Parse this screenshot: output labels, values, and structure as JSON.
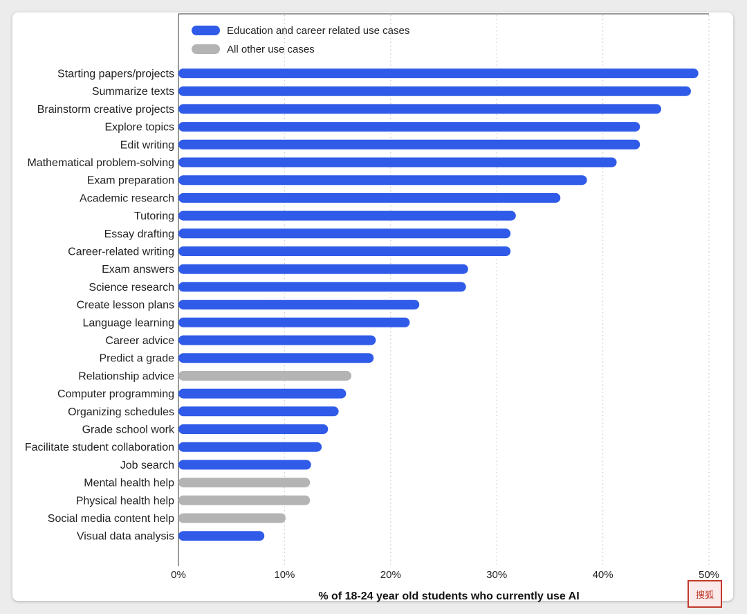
{
  "chart_data": {
    "type": "bar",
    "orientation": "horizontal",
    "title": "",
    "xlabel": "% of 18-24 year old students who currently use AI",
    "ylabel": "",
    "xlim": [
      0,
      50
    ],
    "x_ticks": [
      "0%",
      "10%",
      "20%",
      "30%",
      "40%",
      "50%"
    ],
    "x_tick_values": [
      0,
      10,
      20,
      30,
      40,
      50
    ],
    "grid": "vertical dotted",
    "legend_position": "top-left",
    "legend": [
      {
        "label": "Education and career related use cases",
        "color": "#2f5be8"
      },
      {
        "label": "All other use cases",
        "color": "#b4b4b4"
      }
    ],
    "categories": [
      "Starting papers/projects",
      "Summarize texts",
      "Brainstorm creative projects",
      "Explore topics",
      "Edit writing",
      "Mathematical problem-solving",
      "Exam preparation",
      "Academic research",
      "Tutoring",
      "Essay drafting",
      "Career-related writing",
      "Exam answers",
      "Science research",
      "Create lesson plans",
      "Language learning",
      "Career advice",
      "Predict a grade",
      "Relationship advice",
      "Computer programming",
      "Organizing schedules",
      "Grade school work",
      "Facilitate student collaboration",
      "Job search",
      "Mental health help",
      "Physical health help",
      "Social media content help",
      "Visual data analysis"
    ],
    "values": [
      49,
      48.3,
      45.5,
      43.5,
      43.5,
      41.3,
      38.5,
      36,
      31.8,
      31.3,
      31.3,
      27.3,
      27.1,
      22.7,
      21.8,
      18.6,
      18.4,
      16.3,
      15.8,
      15.1,
      14.1,
      13.5,
      12.5,
      12.4,
      12.4,
      10.1,
      8.1
    ],
    "groups": [
      "edu",
      "edu",
      "edu",
      "edu",
      "edu",
      "edu",
      "edu",
      "edu",
      "edu",
      "edu",
      "edu",
      "edu",
      "edu",
      "edu",
      "edu",
      "edu",
      "edu",
      "other",
      "edu",
      "edu",
      "edu",
      "edu",
      "edu",
      "other",
      "other",
      "other",
      "edu"
    ]
  },
  "watermark_text": "搜狐"
}
